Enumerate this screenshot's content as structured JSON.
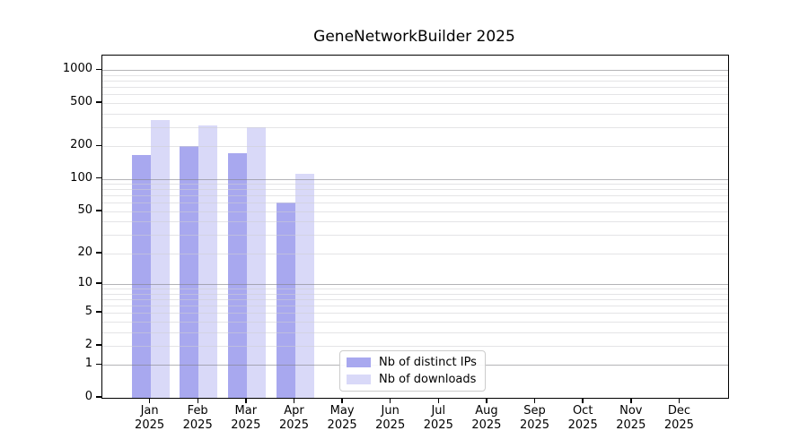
{
  "chart_data": {
    "type": "bar",
    "title": "GeneNetworkBuilder 2025",
    "categories": [
      "Jan",
      "Feb",
      "Mar",
      "Apr",
      "May",
      "Jun",
      "Jul",
      "Aug",
      "Sep",
      "Oct",
      "Nov",
      "Dec"
    ],
    "x_tick_year": "2025",
    "series": [
      {
        "name": "Nb of distinct IPs",
        "color": "#a8a8ef",
        "values": [
          165,
          201,
          174,
          61,
          0,
          0,
          0,
          0,
          0,
          0,
          0,
          0
        ]
      },
      {
        "name": "Nb of downloads",
        "color": "#d9d9f8",
        "values": [
          350,
          311,
          300,
          111,
          0,
          0,
          0,
          0,
          0,
          0,
          0,
          0
        ]
      }
    ],
    "yticks": [
      0,
      1,
      2,
      5,
      10,
      20,
      50,
      100,
      200,
      500,
      1000
    ],
    "y_major_ticks": [
      1,
      10,
      100,
      1000
    ],
    "yscale": "log(value+1)",
    "ylim": [
      0,
      1360
    ],
    "grid": "on",
    "legend_position": "inside bottom-center",
    "colors": {
      "background": "#ffffff",
      "text": "#000000",
      "axis": "#000000",
      "major_grid": "#8a8a8a",
      "minor_grid": "#d6d6da"
    }
  }
}
